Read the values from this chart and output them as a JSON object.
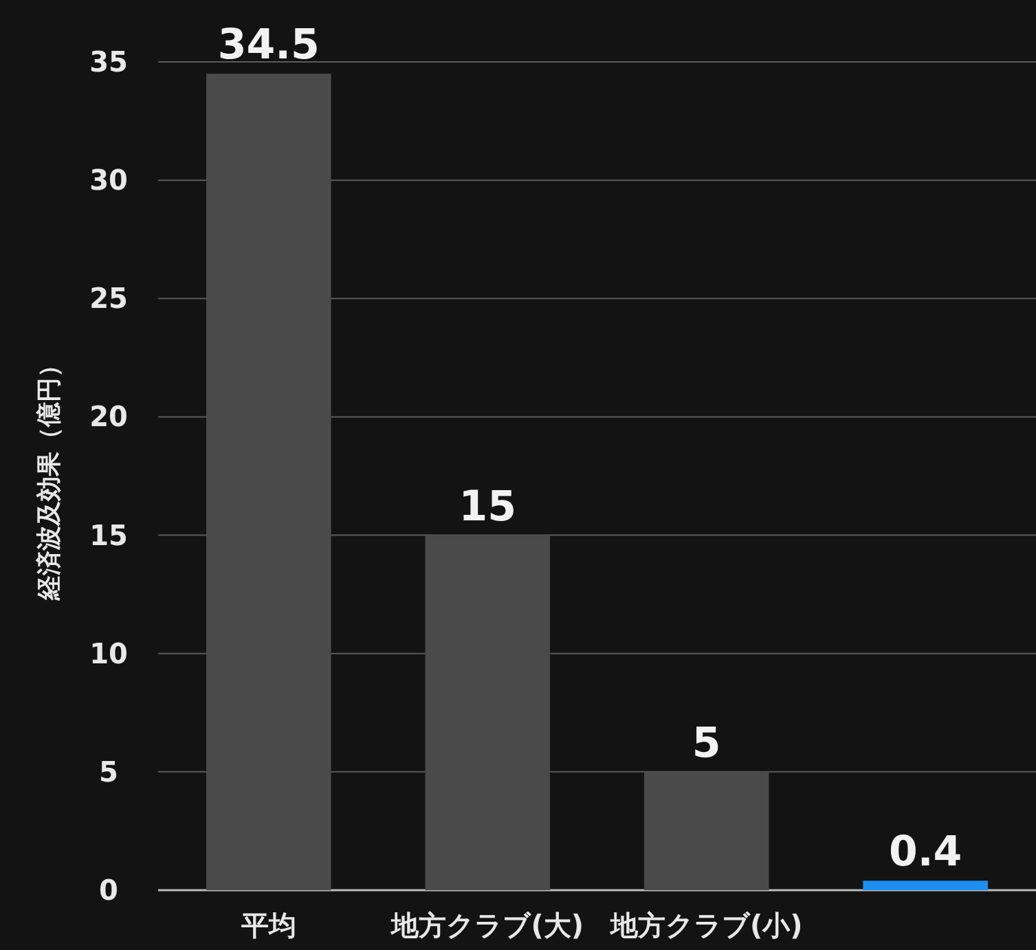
{
  "chart_data": {
    "type": "bar",
    "ylabel": "経済波及効果（億円）",
    "categories": [
      "平均",
      "地方クラブ(大)",
      "地方クラブ(小)",
      null
    ],
    "values": [
      34.5,
      15,
      5,
      0.4
    ],
    "colors": [
      "#4a4a4a",
      "#4a4a4a",
      "#4a4a4a",
      "#1e8ff0"
    ],
    "ylim": [
      0,
      35
    ],
    "yticks": [
      0,
      5,
      10,
      15,
      20,
      25,
      30,
      35
    ],
    "grid": "y",
    "data_labels": true
  }
}
